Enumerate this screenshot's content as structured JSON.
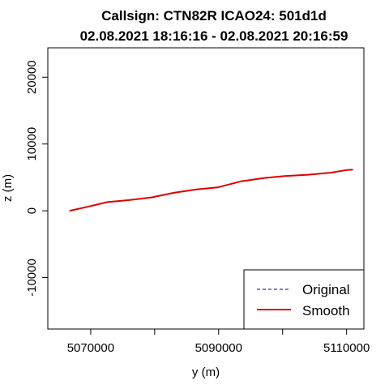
{
  "chart_data": {
    "type": "line",
    "title_line1": "Callsign: CTN82R   ICAO24: 501d1d",
    "title_line2": "02.08.2021 18:16:16 - 02.08.2021 20:16:59",
    "xlabel": "y (m)",
    "ylabel": "z (m)",
    "xlim": [
      5063300,
      5112700
    ],
    "ylim": [
      -17700,
      24400
    ],
    "xticks": [
      5070000,
      5090000,
      5110000
    ],
    "xticks_minor": [
      5080000,
      5100000
    ],
    "yticks": [
      -10000,
      0,
      10000,
      20000
    ],
    "grid": false,
    "legend_position": "bottom-right",
    "series": [
      {
        "name": "Original",
        "color": "#00008b",
        "style": "dashed",
        "x": [
          5066700,
          5069500,
          5072600,
          5076000,
          5079500,
          5083000,
          5086500,
          5089800,
          5093500,
          5097000,
          5100300,
          5104000,
          5107500,
          5110000,
          5111000
        ],
        "y": [
          0,
          600,
          1300,
          1600,
          2000,
          2700,
          3200,
          3500,
          4400,
          4900,
          5200,
          5400,
          5700,
          6100,
          6150
        ]
      },
      {
        "name": "Smooth",
        "color": "#dd0000",
        "style": "solid",
        "x": [
          5066700,
          5069500,
          5072600,
          5076000,
          5079500,
          5083000,
          5086500,
          5089800,
          5093500,
          5097000,
          5100300,
          5104000,
          5107500,
          5110000,
          5111000
        ],
        "y": [
          0,
          600,
          1300,
          1600,
          2000,
          2700,
          3200,
          3500,
          4400,
          4900,
          5200,
          5400,
          5700,
          6100,
          6150
        ]
      }
    ]
  }
}
